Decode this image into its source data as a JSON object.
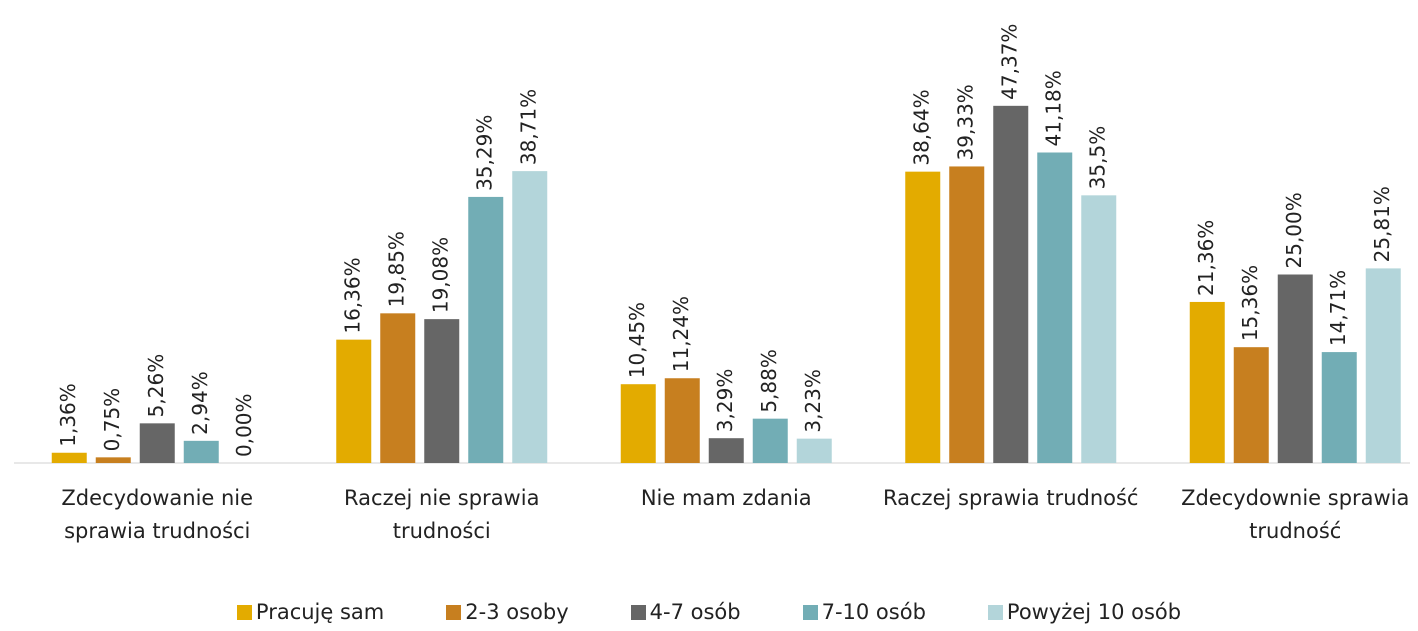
{
  "chart_data": {
    "type": "bar",
    "categories": [
      "Zdecydowanie nie sprawia trudności",
      "Raczej nie sprawia trudności",
      "Nie mam zdania",
      "Raczej sprawia trudność",
      "Zdecydownie sprawia trudność"
    ],
    "ylim": [
      0,
      50
    ],
    "series": [
      {
        "name": "Pracuję sam",
        "color": "#e3ab00",
        "values": [
          1.36,
          16.36,
          10.45,
          38.64,
          21.36
        ],
        "value_labels": [
          "1,36%",
          "16,36%",
          "10,45%",
          "38,64%",
          "21,36%"
        ]
      },
      {
        "name": "2-3 osoby",
        "color": "#c77f1f",
        "values": [
          0.75,
          19.85,
          11.24,
          39.33,
          15.36
        ],
        "value_labels": [
          "0,75%",
          "19,85%",
          "11,24%",
          "39,33%",
          "15,36%"
        ]
      },
      {
        "name": "4-7 osób",
        "color": "#666666",
        "values": [
          5.26,
          19.08,
          3.29,
          47.37,
          25.0
        ],
        "value_labels": [
          "5,26%",
          "19,08%",
          "3,29%",
          "47,37%",
          "25,00%"
        ]
      },
      {
        "name": "7-10 osób",
        "color": "#72adb5",
        "values": [
          2.94,
          35.29,
          5.88,
          41.18,
          14.71
        ],
        "value_labels": [
          "2,94%",
          "35,29%",
          "5,88%",
          "41,18%",
          "14,71%"
        ]
      },
      {
        "name": "Powyżej 10 osób",
        "color": "#b3d5da",
        "values": [
          0.0,
          38.71,
          3.23,
          35.5,
          25.81
        ],
        "value_labels": [
          "0,00%",
          "38,71%",
          "3,23%",
          "35,5%",
          "25,81%"
        ]
      }
    ]
  }
}
